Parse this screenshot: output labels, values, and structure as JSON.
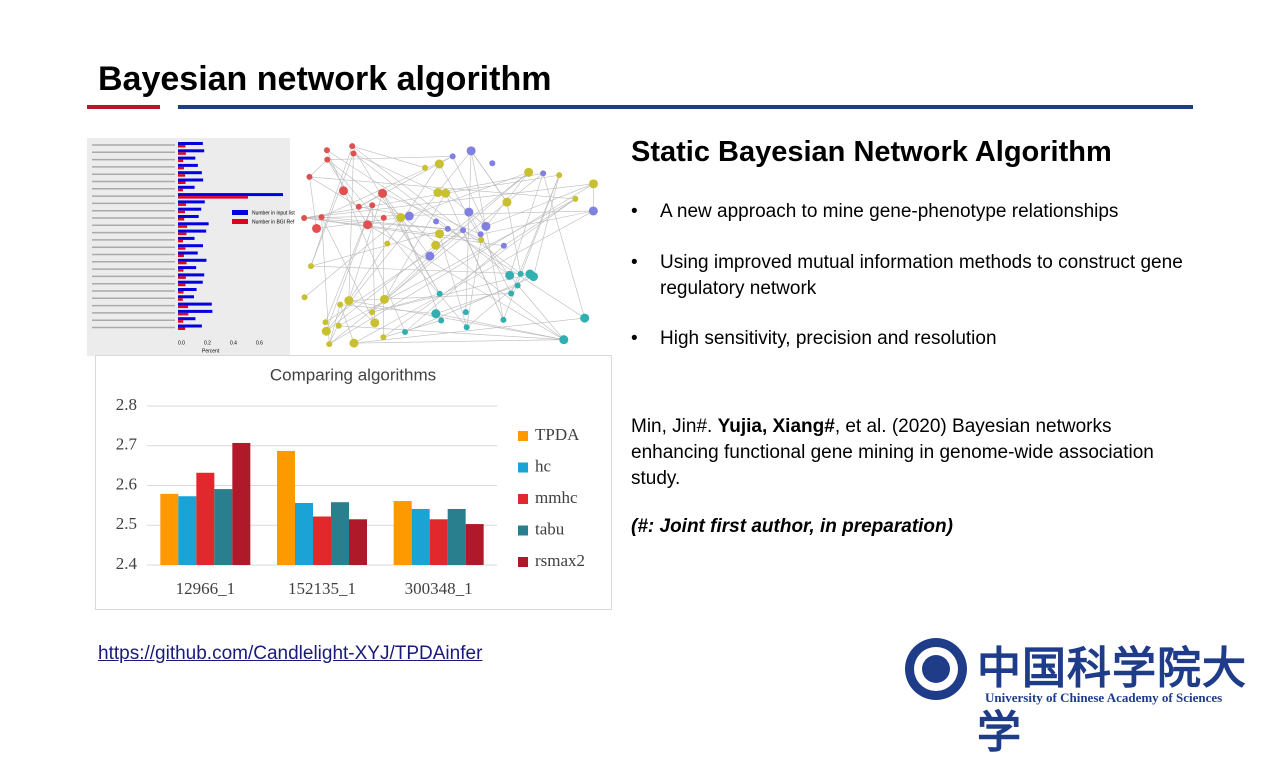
{
  "header": {
    "title": "Bayesian network algorithm"
  },
  "figure_image": {
    "legend": [
      "Number in input list",
      "Number in BGI Ref"
    ],
    "x_label": "Percent",
    "x_ticks": [
      "0.0",
      "0.2",
      "0.4",
      "0.6"
    ]
  },
  "chart_data": {
    "type": "bar",
    "title": "Comparing algorithms",
    "categories": [
      "12966_1",
      "152135_1",
      "300348_1"
    ],
    "series": [
      {
        "name": "TPDA",
        "color": "#ff9900",
        "values": [
          2.579,
          2.687,
          2.561
        ]
      },
      {
        "name": "hc",
        "color": "#1aa3d4",
        "values": [
          2.573,
          2.556,
          2.541
        ]
      },
      {
        "name": "mmhc",
        "color": "#e0282d",
        "values": [
          2.632,
          2.522,
          2.515
        ]
      },
      {
        "name": "tabu",
        "color": "#2a7f8f",
        "values": [
          2.591,
          2.558,
          2.541
        ]
      },
      {
        "name": "rsmax2",
        "color": "#b0192a",
        "values": [
          2.707,
          2.515,
          2.503
        ]
      }
    ],
    "ylim": [
      2.4,
      2.8
    ],
    "yticks": [
      2.4,
      2.5,
      2.6,
      2.7,
      2.8
    ],
    "grid": true,
    "legend": "right"
  },
  "content": {
    "heading": "Static Bayesian Network Algorithm",
    "bullets": [
      "A new approach to mine gene-phenotype relationships",
      "Using improved mutual information methods to construct gene regulatory network",
      "High sensitivity, precision and resolution"
    ],
    "citation": {
      "prefix": "Min, Jin#. ",
      "bold": "Yujia, Xiang#",
      "suffix": ", et al. (2020) Bayesian networks enhancing functional gene mining in genome-wide association study."
    },
    "note": "(#: Joint first author, in preparation)",
    "link": "https://github.com/Candlelight-XYJ/TPDAinfer"
  },
  "logo": {
    "chinese": "中国科学院大学",
    "english": "University of Chinese Academy of Sciences"
  }
}
